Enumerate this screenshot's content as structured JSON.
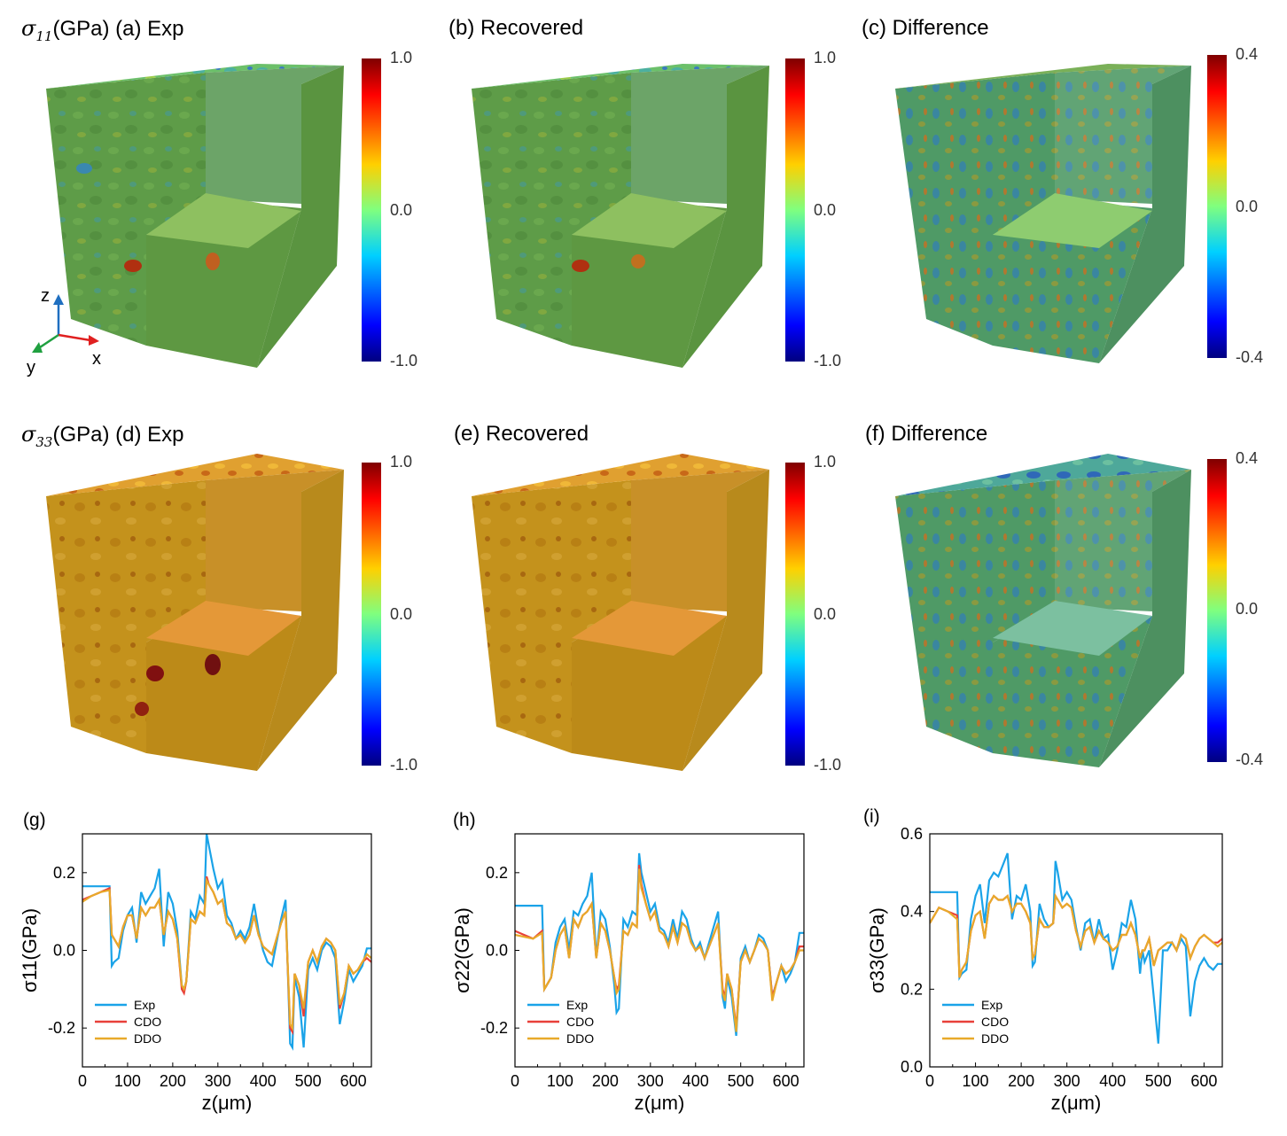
{
  "panels_top": [
    {
      "id": "a",
      "lead_sym": "σ",
      "lead_sub": "11",
      "lead_unit": "(GPa)",
      "label": "(a) Exp",
      "colorbar": {
        "max": "1.0",
        "mid": "0.0",
        "min": "-1.0"
      }
    },
    {
      "id": "b",
      "label": "(b) Recovered",
      "colorbar": {
        "max": "1.0",
        "mid": "0.0",
        "min": "-1.0"
      }
    },
    {
      "id": "c",
      "label": "(c) Difference",
      "colorbar": {
        "max": "0.4",
        "mid": "0.0",
        "min": "-0.4"
      }
    }
  ],
  "panels_mid": [
    {
      "id": "d",
      "lead_sym": "σ",
      "lead_sub": "33",
      "lead_unit": "(GPa)",
      "label": "(d) Exp",
      "colorbar": {
        "max": "1.0",
        "mid": "0.0",
        "min": "-1.0"
      }
    },
    {
      "id": "e",
      "label": "(e) Recovered",
      "colorbar": {
        "max": "1.0",
        "mid": "0.0",
        "min": "-1.0"
      }
    },
    {
      "id": "f",
      "label": "(f) Difference",
      "colorbar": {
        "max": "0.4",
        "mid": "0.0",
        "min": "-0.4"
      }
    }
  ],
  "triad": {
    "z": "z",
    "x": "x",
    "y": "y"
  },
  "colors": {
    "exp": "#1aa3e8",
    "cdo": "#e8403a",
    "ddo": "#e8a92a",
    "cube_green": "#5a9a4a",
    "cube_orange": "#c9961e"
  },
  "chart_data": [
    {
      "type": "line",
      "panel_label": "(g)",
      "xlabel": "z(μm)",
      "ylabel": "σ11(GPa)",
      "xlim": [
        0,
        640
      ],
      "ylim": [
        -0.3,
        0.3
      ],
      "xticks": [
        0,
        100,
        200,
        300,
        400,
        500,
        600
      ],
      "yticks": [
        {
          "v": 0.2,
          "t": "0.2"
        },
        {
          "v": 0.0,
          "t": "0.0"
        },
        {
          "v": -0.2,
          "t": "-0.2"
        }
      ],
      "legend": [
        "Exp",
        "CDO",
        "DDO"
      ],
      "x": [
        0,
        20,
        40,
        60,
        65,
        70,
        80,
        90,
        100,
        110,
        120,
        130,
        140,
        150,
        160,
        170,
        180,
        190,
        200,
        210,
        220,
        225,
        230,
        240,
        250,
        260,
        270,
        275,
        280,
        290,
        300,
        310,
        320,
        330,
        340,
        350,
        360,
        370,
        380,
        390,
        400,
        410,
        420,
        430,
        440,
        450,
        460,
        465,
        470,
        480,
        490,
        500,
        510,
        520,
        530,
        540,
        550,
        560,
        570,
        580,
        590,
        600,
        610,
        620,
        630,
        640
      ],
      "series": [
        {
          "name": "Exp",
          "values": [
            0.165,
            0.165,
            0.165,
            0.165,
            -0.04,
            -0.03,
            -0.02,
            0.05,
            0.09,
            0.11,
            0.02,
            0.15,
            0.12,
            0.14,
            0.16,
            0.21,
            0.01,
            0.15,
            0.12,
            0.05,
            -0.09,
            -0.1,
            -0.08,
            0.1,
            0.08,
            0.14,
            0.12,
            0.3,
            0.27,
            0.21,
            0.16,
            0.18,
            0.09,
            0.07,
            0.03,
            0.05,
            0.03,
            0.06,
            0.12,
            0.05,
            0.0,
            -0.03,
            -0.04,
            0.02,
            0.08,
            0.13,
            -0.24,
            -0.25,
            -0.07,
            -0.12,
            -0.25,
            -0.05,
            -0.02,
            -0.05,
            0.0,
            0.02,
            0.01,
            -0.02,
            -0.19,
            -0.13,
            -0.05,
            -0.08,
            -0.06,
            -0.04,
            0.005,
            0.005
          ]
        },
        {
          "name": "CDO",
          "values": [
            0.13,
            0.14,
            0.15,
            0.16,
            0.04,
            0.03,
            0.01,
            0.06,
            0.09,
            0.09,
            0.03,
            0.11,
            0.09,
            0.11,
            0.11,
            0.13,
            0.04,
            0.1,
            0.08,
            0.03,
            -0.1,
            -0.11,
            -0.08,
            0.08,
            0.07,
            0.1,
            0.09,
            0.19,
            0.17,
            0.15,
            0.12,
            0.13,
            0.07,
            0.06,
            0.03,
            0.04,
            0.02,
            0.04,
            0.09,
            0.04,
            0.01,
            0.0,
            -0.01,
            0.03,
            0.07,
            0.1,
            -0.2,
            -0.21,
            -0.06,
            -0.09,
            -0.17,
            -0.03,
            0.0,
            -0.03,
            0.01,
            0.03,
            0.02,
            0.0,
            -0.15,
            -0.11,
            -0.04,
            -0.06,
            -0.05,
            -0.03,
            -0.02,
            -0.03
          ]
        },
        {
          "name": "DDO",
          "values": [
            0.125,
            0.14,
            0.15,
            0.155,
            0.04,
            0.03,
            0.01,
            0.06,
            0.09,
            0.09,
            0.03,
            0.11,
            0.09,
            0.11,
            0.11,
            0.13,
            0.04,
            0.1,
            0.08,
            0.03,
            -0.09,
            -0.1,
            -0.08,
            0.08,
            0.07,
            0.1,
            0.09,
            0.18,
            0.17,
            0.15,
            0.12,
            0.13,
            0.07,
            0.06,
            0.03,
            0.04,
            0.02,
            0.04,
            0.09,
            0.04,
            0.01,
            0.0,
            -0.01,
            0.03,
            0.07,
            0.1,
            -0.19,
            -0.2,
            -0.06,
            -0.09,
            -0.15,
            -0.03,
            0.0,
            -0.03,
            0.01,
            0.03,
            0.02,
            0.0,
            -0.14,
            -0.11,
            -0.04,
            -0.06,
            -0.05,
            -0.03,
            -0.01,
            -0.02
          ]
        }
      ]
    },
    {
      "type": "line",
      "panel_label": "(h)",
      "xlabel": "z(μm)",
      "ylabel": "σ22(GPa)",
      "xlim": [
        0,
        640
      ],
      "ylim": [
        -0.3,
        0.3
      ],
      "xticks": [
        0,
        100,
        200,
        300,
        400,
        500,
        600
      ],
      "yticks": [
        {
          "v": 0.2,
          "t": "0.2"
        },
        {
          "v": 0.0,
          "t": "0.0"
        },
        {
          "v": -0.2,
          "t": "-0.2"
        }
      ],
      "legend": [
        "Exp",
        "CDO",
        "DDO"
      ],
      "x": [
        0,
        20,
        40,
        60,
        65,
        70,
        80,
        90,
        100,
        110,
        120,
        130,
        140,
        150,
        160,
        170,
        180,
        190,
        200,
        210,
        220,
        225,
        230,
        240,
        250,
        260,
        270,
        275,
        280,
        290,
        300,
        310,
        320,
        330,
        340,
        350,
        360,
        370,
        380,
        390,
        400,
        410,
        420,
        430,
        440,
        450,
        460,
        465,
        470,
        480,
        490,
        500,
        510,
        520,
        530,
        540,
        550,
        560,
        570,
        580,
        590,
        600,
        610,
        620,
        630,
        640
      ],
      "series": [
        {
          "name": "Exp",
          "values": [
            0.115,
            0.115,
            0.115,
            0.115,
            -0.1,
            -0.09,
            -0.07,
            0.02,
            0.06,
            0.08,
            0.0,
            0.1,
            0.09,
            0.12,
            0.14,
            0.2,
            -0.02,
            0.1,
            0.08,
            0.01,
            -0.09,
            -0.16,
            -0.15,
            0.08,
            0.06,
            0.1,
            0.09,
            0.25,
            0.2,
            0.15,
            0.1,
            0.12,
            0.06,
            0.05,
            0.02,
            0.08,
            0.03,
            0.1,
            0.08,
            0.03,
            0.0,
            0.02,
            -0.02,
            0.02,
            0.06,
            0.1,
            -0.12,
            -0.15,
            -0.07,
            -0.12,
            -0.22,
            -0.02,
            0.01,
            -0.03,
            0.0,
            0.04,
            0.03,
            0.0,
            -0.12,
            -0.08,
            -0.04,
            -0.08,
            -0.06,
            -0.03,
            0.045,
            0.045
          ]
        },
        {
          "name": "CDO",
          "values": [
            0.05,
            0.04,
            0.03,
            0.05,
            -0.1,
            -0.09,
            -0.07,
            0.0,
            0.04,
            0.06,
            -0.02,
            0.08,
            0.06,
            0.09,
            0.1,
            0.12,
            -0.02,
            0.07,
            0.05,
            0.0,
            -0.07,
            -0.1,
            -0.09,
            0.05,
            0.04,
            0.07,
            0.06,
            0.22,
            0.17,
            0.12,
            0.08,
            0.1,
            0.05,
            0.04,
            0.01,
            0.06,
            0.02,
            0.07,
            0.06,
            0.02,
            0.0,
            0.01,
            -0.02,
            0.01,
            0.04,
            0.07,
            -0.1,
            -0.12,
            -0.06,
            -0.1,
            -0.2,
            -0.03,
            0.0,
            -0.03,
            0.0,
            0.03,
            0.02,
            0.0,
            -0.12,
            -0.08,
            -0.04,
            -0.06,
            -0.05,
            -0.03,
            0.01,
            0.01
          ]
        },
        {
          "name": "DDO",
          "values": [
            0.04,
            0.035,
            0.03,
            0.045,
            -0.1,
            -0.09,
            -0.07,
            0.0,
            0.04,
            0.06,
            -0.02,
            0.08,
            0.06,
            0.09,
            0.1,
            0.12,
            -0.02,
            0.07,
            0.05,
            0.0,
            -0.07,
            -0.11,
            -0.1,
            0.05,
            0.04,
            0.07,
            0.06,
            0.21,
            0.16,
            0.12,
            0.08,
            0.1,
            0.05,
            0.04,
            0.01,
            0.06,
            0.02,
            0.07,
            0.06,
            0.02,
            0.0,
            0.01,
            -0.02,
            0.01,
            0.04,
            0.07,
            -0.11,
            -0.13,
            -0.06,
            -0.1,
            -0.21,
            -0.03,
            0.0,
            -0.03,
            0.0,
            0.03,
            0.02,
            0.0,
            -0.13,
            -0.08,
            -0.04,
            -0.06,
            -0.05,
            -0.03,
            0.0,
            0.0
          ]
        }
      ]
    },
    {
      "type": "line",
      "panel_label": "(i)",
      "xlabel": "z(μm)",
      "ylabel": "σ33(GPa)",
      "xlim": [
        0,
        640
      ],
      "ylim": [
        0.0,
        0.6
      ],
      "xticks": [
        0,
        100,
        200,
        300,
        400,
        500,
        600
      ],
      "yticks": [
        {
          "v": 0.6,
          "t": "0.6"
        },
        {
          "v": 0.4,
          "t": "0.4"
        },
        {
          "v": 0.2,
          "t": "0.2"
        },
        {
          "v": 0.0,
          "t": "0.0"
        }
      ],
      "legend": [
        "Exp",
        "CDO",
        "DDO"
      ],
      "x": [
        0,
        20,
        40,
        60,
        65,
        70,
        80,
        90,
        100,
        110,
        120,
        130,
        140,
        150,
        160,
        170,
        180,
        190,
        200,
        210,
        220,
        225,
        230,
        240,
        250,
        260,
        270,
        275,
        280,
        290,
        300,
        310,
        320,
        330,
        340,
        350,
        360,
        370,
        380,
        390,
        400,
        410,
        420,
        430,
        440,
        450,
        460,
        465,
        470,
        480,
        490,
        500,
        510,
        520,
        530,
        540,
        550,
        560,
        570,
        580,
        590,
        600,
        610,
        620,
        630,
        640
      ],
      "series": [
        {
          "name": "Exp",
          "values": [
            0.45,
            0.45,
            0.45,
            0.45,
            0.23,
            0.24,
            0.25,
            0.38,
            0.44,
            0.47,
            0.37,
            0.48,
            0.5,
            0.49,
            0.52,
            0.55,
            0.38,
            0.44,
            0.43,
            0.47,
            0.4,
            0.26,
            0.27,
            0.42,
            0.38,
            0.36,
            0.37,
            0.53,
            0.5,
            0.43,
            0.45,
            0.43,
            0.36,
            0.3,
            0.37,
            0.38,
            0.32,
            0.38,
            0.33,
            0.34,
            0.25,
            0.3,
            0.37,
            0.36,
            0.43,
            0.38,
            0.24,
            0.3,
            0.27,
            0.3,
            0.18,
            0.06,
            0.3,
            0.3,
            0.32,
            0.3,
            0.33,
            0.31,
            0.13,
            0.22,
            0.26,
            0.28,
            0.26,
            0.25,
            0.265,
            0.265
          ]
        },
        {
          "name": "CDO",
          "values": [
            0.37,
            0.41,
            0.4,
            0.39,
            0.23,
            0.25,
            0.27,
            0.35,
            0.39,
            0.4,
            0.33,
            0.42,
            0.44,
            0.43,
            0.43,
            0.44,
            0.4,
            0.42,
            0.42,
            0.4,
            0.37,
            0.28,
            0.29,
            0.38,
            0.36,
            0.36,
            0.37,
            0.44,
            0.43,
            0.41,
            0.42,
            0.41,
            0.35,
            0.31,
            0.35,
            0.36,
            0.32,
            0.35,
            0.33,
            0.32,
            0.3,
            0.31,
            0.34,
            0.34,
            0.37,
            0.34,
            0.28,
            0.3,
            0.3,
            0.33,
            0.26,
            0.3,
            0.31,
            0.32,
            0.32,
            0.3,
            0.34,
            0.33,
            0.28,
            0.31,
            0.33,
            0.34,
            0.33,
            0.32,
            0.32,
            0.33
          ]
        },
        {
          "name": "DDO",
          "values": [
            0.37,
            0.41,
            0.4,
            0.38,
            0.23,
            0.25,
            0.27,
            0.35,
            0.39,
            0.4,
            0.33,
            0.42,
            0.44,
            0.43,
            0.43,
            0.44,
            0.4,
            0.42,
            0.42,
            0.4,
            0.37,
            0.28,
            0.29,
            0.38,
            0.36,
            0.36,
            0.37,
            0.44,
            0.43,
            0.41,
            0.42,
            0.41,
            0.35,
            0.31,
            0.35,
            0.36,
            0.32,
            0.35,
            0.33,
            0.32,
            0.3,
            0.31,
            0.34,
            0.34,
            0.37,
            0.34,
            0.28,
            0.3,
            0.3,
            0.33,
            0.26,
            0.3,
            0.31,
            0.32,
            0.32,
            0.3,
            0.34,
            0.33,
            0.28,
            0.31,
            0.33,
            0.34,
            0.33,
            0.32,
            0.31,
            0.32
          ]
        }
      ]
    }
  ]
}
